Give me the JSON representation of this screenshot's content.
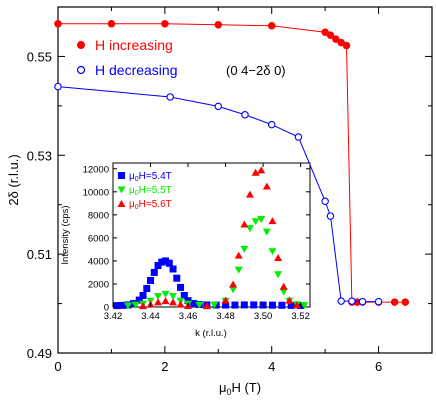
{
  "chart_data": [
    {
      "type": "line",
      "xlabel_main": "μ",
      "xlabel_sub": "0",
      "xlabel_rest": "H (T)",
      "ylabel": "2δ (r.l.u.)",
      "xlim": [
        0,
        7
      ],
      "ylim": [
        0.49,
        0.56
      ],
      "xticks": [
        0,
        2,
        4,
        6
      ],
      "yticks": [
        0.49,
        0.51,
        0.53,
        0.55
      ],
      "ytick_labels": [
        "0.49",
        "0.51",
        "0.53",
        "0.55"
      ],
      "annotation": "(0 4−2δ 0)",
      "legend_position": "top-left",
      "series": [
        {
          "name": "H increasing",
          "color": "#ff0000",
          "marker": "filled-circle",
          "x": [
            0,
            1,
            2,
            3,
            4,
            5,
            5.1,
            5.2,
            5.3,
            5.4,
            5.5,
            5.6,
            5.7,
            6.0,
            6.3,
            6.5
          ],
          "y": [
            0.5566,
            0.5566,
            0.5566,
            0.5564,
            0.5562,
            0.5549,
            0.5543,
            0.5535,
            0.5528,
            0.5522,
            0.5003,
            0.5003,
            0.5003,
            0.5003,
            0.5003,
            0.5003
          ]
        },
        {
          "name": "H decreasing",
          "color": "#0000ff",
          "marker": "open-circle",
          "x": [
            0,
            2.1,
            3.0,
            3.5,
            4.0,
            4.5,
            5.0,
            5.1,
            5.3,
            5.5,
            5.7,
            6.0
          ],
          "y": [
            0.5439,
            0.5418,
            0.5399,
            0.5382,
            0.5362,
            0.5337,
            0.5207,
            0.5177,
            0.5005,
            0.5005,
            0.5004,
            0.5004
          ]
        }
      ]
    },
    {
      "type": "scatter",
      "xlabel": "k (r.l.u.)",
      "ylabel": "Intensity (cps)",
      "xlim": [
        3.42,
        3.525
      ],
      "ylim": [
        0,
        12500
      ],
      "xticks": [
        3.42,
        3.44,
        3.46,
        3.48,
        3.5,
        3.52
      ],
      "xtick_labels": [
        "3.42",
        "3.44",
        "3.46",
        "3.48",
        "3.50",
        "3.52"
      ],
      "yticks": [
        0,
        2000,
        4000,
        6000,
        8000,
        10000,
        12000
      ],
      "ytick_labels": [
        "0",
        "2000",
        "4000",
        "6000",
        "8000",
        "10000",
        "12000"
      ],
      "legend_position": "top-left",
      "series": [
        {
          "name_pre": "μ",
          "name_sub": "0",
          "name_post": "H=5.4T",
          "color": "#0000ff",
          "marker": "square",
          "x": [
            3.422,
            3.425,
            3.428,
            3.431,
            3.434,
            3.436,
            3.438,
            3.44,
            3.442,
            3.444,
            3.446,
            3.448,
            3.45,
            3.452,
            3.454,
            3.456,
            3.458,
            3.46,
            3.463,
            3.466,
            3.47,
            3.475,
            3.48,
            3.485,
            3.49,
            3.495,
            3.5,
            3.505,
            3.51,
            3.515,
            3.52
          ],
          "y": [
            120,
            140,
            180,
            300,
            600,
            1000,
            1600,
            2300,
            3000,
            3600,
            3900,
            4000,
            3800,
            3300,
            2500,
            1700,
            1000,
            550,
            300,
            220,
            180,
            170,
            170,
            170,
            180,
            180,
            170,
            160,
            150,
            140,
            130
          ]
        },
        {
          "name_pre": "μ",
          "name_sub": "0",
          "name_post": "H=5.5T",
          "color": "#00ee00",
          "marker": "triangle-down",
          "x": [
            3.428,
            3.432,
            3.436,
            3.44,
            3.444,
            3.448,
            3.452,
            3.456,
            3.46,
            3.466,
            3.474,
            3.48,
            3.484,
            3.487,
            3.49,
            3.493,
            3.496,
            3.499,
            3.502,
            3.505,
            3.508,
            3.511,
            3.514,
            3.518,
            3.522
          ],
          "y": [
            100,
            150,
            250,
            500,
            900,
            1100,
            900,
            500,
            250,
            150,
            150,
            500,
            1500,
            3200,
            5000,
            6800,
            7400,
            7600,
            6500,
            4800,
            2800,
            1300,
            500,
            200,
            120
          ]
        },
        {
          "name_pre": "μ",
          "name_sub": "0",
          "name_post": "H=5.6T",
          "color": "#ff0000",
          "marker": "triangle-up",
          "x": [
            3.436,
            3.44,
            3.444,
            3.448,
            3.452,
            3.456,
            3.46,
            3.47,
            3.48,
            3.484,
            3.487,
            3.49,
            3.493,
            3.496,
            3.499,
            3.502,
            3.505,
            3.508,
            3.511,
            3.514,
            3.518
          ],
          "y": [
            120,
            250,
            450,
            550,
            450,
            250,
            130,
            120,
            600,
            2000,
            4500,
            7200,
            9800,
            11700,
            11900,
            10500,
            7500,
            4300,
            1800,
            600,
            200
          ]
        }
      ]
    }
  ]
}
